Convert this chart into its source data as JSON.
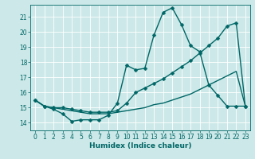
{
  "xlabel": "Humidex (Indice chaleur)",
  "bg_color": "#cce8e8",
  "grid_color": "#ffffff",
  "line_color": "#006666",
  "xlim": [
    -0.5,
    23.5
  ],
  "ylim": [
    13.5,
    21.8
  ],
  "yticks": [
    14,
    15,
    16,
    17,
    18,
    19,
    20,
    21
  ],
  "xticks": [
    0,
    1,
    2,
    3,
    4,
    5,
    6,
    7,
    8,
    9,
    10,
    11,
    12,
    13,
    14,
    15,
    16,
    17,
    18,
    19,
    20,
    21,
    22,
    23
  ],
  "line1_x": [
    0,
    1,
    2,
    3,
    4,
    5,
    6,
    7,
    8,
    9,
    10,
    11,
    12,
    13,
    14,
    15,
    16,
    17,
    18,
    19,
    20,
    21,
    22,
    23
  ],
  "line1_y": [
    15.5,
    15.1,
    14.9,
    14.6,
    14.1,
    14.2,
    14.2,
    14.2,
    14.5,
    15.3,
    17.8,
    17.5,
    17.6,
    19.8,
    21.3,
    21.6,
    20.5,
    19.1,
    18.7,
    16.5,
    15.8,
    15.1,
    15.1,
    15.1
  ],
  "line2_x": [
    0,
    1,
    2,
    3,
    4,
    5,
    6,
    7,
    8,
    9,
    10,
    11,
    12,
    13,
    14,
    15,
    16,
    17,
    18,
    19,
    20,
    21,
    22,
    23
  ],
  "line2_y": [
    15.5,
    15.1,
    15.0,
    14.9,
    14.8,
    14.7,
    14.6,
    14.6,
    14.6,
    14.7,
    14.8,
    14.9,
    15.0,
    15.2,
    15.3,
    15.5,
    15.7,
    15.9,
    16.2,
    16.5,
    16.8,
    17.1,
    17.4,
    15.1
  ],
  "line3_x": [
    0,
    1,
    2,
    3,
    4,
    5,
    6,
    7,
    8,
    9,
    10,
    11,
    12,
    13,
    14,
    15,
    16,
    17,
    18,
    19,
    20,
    21,
    22,
    23
  ],
  "line3_y": [
    15.5,
    15.1,
    15.0,
    15.0,
    14.9,
    14.8,
    14.7,
    14.7,
    14.7,
    14.8,
    15.3,
    16.0,
    16.3,
    16.6,
    16.9,
    17.3,
    17.7,
    18.1,
    18.6,
    19.1,
    19.6,
    20.4,
    20.6,
    15.1
  ],
  "marker": "D",
  "markersize": 2.5,
  "linewidth": 1.0
}
